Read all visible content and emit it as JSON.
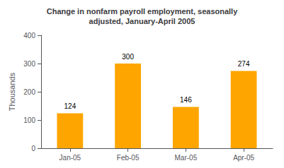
{
  "chart_data": {
    "type": "bar",
    "title": "Change in nonfarm payroll employment, seasonally\nadjusted, January-April 2005",
    "categories": [
      "Jan-05",
      "Feb-05",
      "Mar-05",
      "Apr-05"
    ],
    "values": [
      124,
      300,
      146,
      274
    ],
    "color": "#FFA500",
    "ylabel": "Thousands",
    "ylim": [
      0,
      400
    ],
    "yticks": [
      0,
      100,
      200,
      300,
      400
    ],
    "grid": false,
    "data_labels": true
  }
}
